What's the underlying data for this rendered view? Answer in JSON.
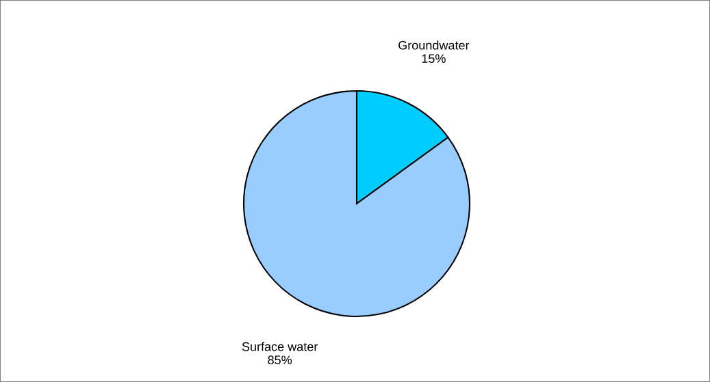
{
  "chart_data": {
    "type": "pie",
    "categories": [
      "Groundwater",
      "Surface water"
    ],
    "values": [
      15,
      85
    ],
    "colors": [
      "#00ccff",
      "#99ccff"
    ],
    "value_labels": [
      "15%",
      "85%"
    ],
    "legend": false
  }
}
